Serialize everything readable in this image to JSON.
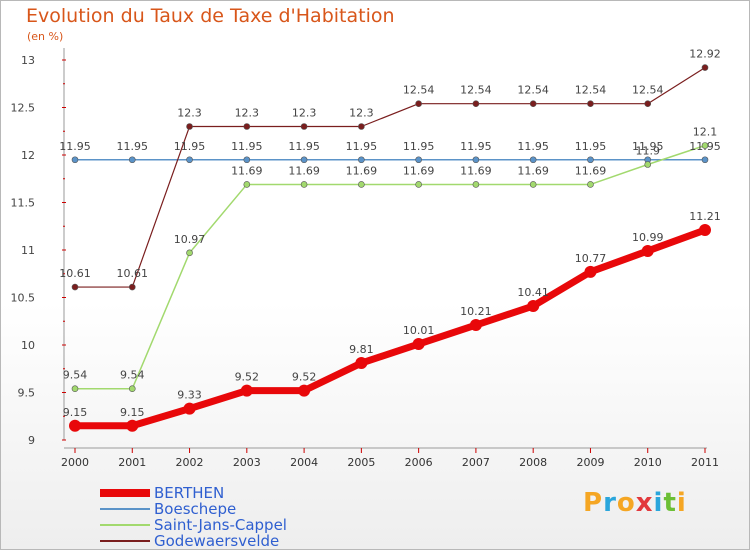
{
  "title": "Evolution du Taux de Taxe d'Habitation",
  "subtitle": "(en %)",
  "logo": {
    "letters": [
      "P",
      "r",
      "o",
      "x",
      "i",
      "t",
      "i"
    ],
    "colors": [
      "#f5a623",
      "#2aa6dc",
      "#f5a623",
      "#e2393d",
      "#2aa6dc",
      "#6cbf35",
      "#f5a623"
    ]
  },
  "chart_data": {
    "type": "line",
    "x": [
      "2000",
      "2001",
      "2002",
      "2003",
      "2004",
      "2005",
      "2006",
      "2007",
      "2008",
      "2009",
      "2010",
      "2011"
    ],
    "ylim": [
      9,
      13
    ],
    "yticks": [
      "9",
      "9.5",
      "10",
      "10.5",
      "11",
      "11.5",
      "12",
      "12.5",
      "13"
    ],
    "grid": false,
    "legend": "bottom-left",
    "series": [
      {
        "name": "BERTHEN",
        "color": "#e8080a",
        "width": 7,
        "values": [
          9.15,
          9.15,
          9.33,
          9.52,
          9.52,
          9.81,
          10.01,
          10.21,
          10.41,
          10.77,
          10.99,
          11.21
        ],
        "labels": [
          "9.15",
          "9.15",
          "9.33",
          "9.52",
          "9.52",
          "9.81",
          "10.01",
          "10.21",
          "10.41",
          "10.77",
          "10.99",
          "11.21"
        ]
      },
      {
        "name": "Boeschepe",
        "color": "#5b93c8",
        "width": 1.5,
        "values": [
          11.95,
          11.95,
          11.95,
          11.95,
          11.95,
          11.95,
          11.95,
          11.95,
          11.95,
          11.95,
          11.95,
          11.95
        ],
        "labels": [
          "11.95",
          "11.95",
          "11.95",
          "11.95",
          "11.95",
          "11.95",
          "11.95",
          "11.95",
          "11.95",
          "11.95",
          "11.95",
          "11.95"
        ]
      },
      {
        "name": "Saint-Jans-Cappel",
        "color": "#a2d96e",
        "width": 1.5,
        "values": [
          9.54,
          9.54,
          10.97,
          11.69,
          11.69,
          11.69,
          11.69,
          11.69,
          11.69,
          11.69,
          11.9,
          12.1
        ],
        "labels": [
          "9.54",
          "9.54",
          "10.97",
          "11.69",
          "11.69",
          "11.69",
          "11.69",
          "11.69",
          "11.69",
          "11.69",
          "11.9",
          "12.1"
        ]
      },
      {
        "name": "Godewaersvelde",
        "color": "#7a1e1e",
        "width": 1.2,
        "values": [
          10.61,
          10.61,
          12.3,
          12.3,
          12.3,
          12.3,
          12.54,
          12.54,
          12.54,
          12.54,
          12.54,
          12.92
        ],
        "labels": [
          "10.61",
          "10.61",
          "12.3",
          "12.3",
          "12.3",
          "12.3",
          "12.54",
          "12.54",
          "12.54",
          "12.54",
          "12.54",
          "12.92"
        ]
      }
    ]
  }
}
